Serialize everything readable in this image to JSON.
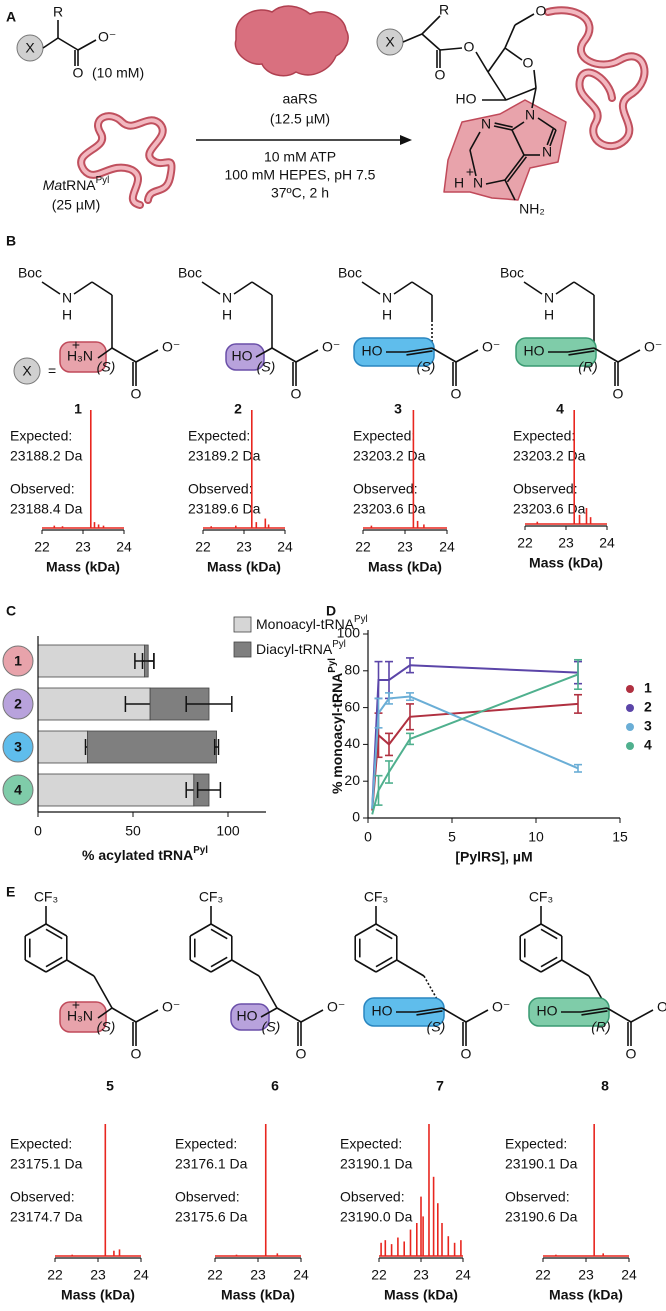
{
  "panel_labels": [
    "A",
    "B",
    "C",
    "D",
    "E"
  ],
  "panel_a": {
    "reactant": {
      "substituent": "R",
      "x": "X",
      "carbonyl_o": "O",
      "carboxylate": "O⁻",
      "concentration": "(10 mM)"
    },
    "enzyme": "aaRS",
    "enzyme_concentration": "(12.5 µM)",
    "conditions": [
      "10 mM ATP",
      "100 mM HEPES, pH 7.5",
      "37ºC, 2 h"
    ],
    "trna": {
      "prefix": "Ma",
      "name": "tRNA",
      "superscript": "Pyl",
      "concentration": "(25 µM)"
    },
    "product": {
      "substituent": "R",
      "x": "X",
      "carbonyl_o": "O",
      "ester_o": "O",
      "ring_o": "O",
      "linker_o": "O",
      "hydroxyl": "HO",
      "n9": "N",
      "n7": "N",
      "n3": "N",
      "n1": "N",
      "n1_h": "H",
      "charge": "+",
      "amine": "NH₂"
    }
  },
  "panel_b": {
    "x": "X",
    "equals": "=",
    "structures": [
      {
        "protecting_group": "Boc",
        "amide_n": "N",
        "amide_h": "H",
        "group": "H₃N",
        "charge": "+",
        "stereo": "(S)",
        "carbonyl_o": "O",
        "carboxylate": "O⁻",
        "number": "1"
      },
      {
        "protecting_group": "Boc",
        "amide_n": "N",
        "amide_h": "H",
        "group": "HO",
        "stereo": "(S)",
        "carbonyl_o": "O",
        "carboxylate": "O⁻",
        "number": "2"
      },
      {
        "protecting_group": "Boc",
        "amide_n": "N",
        "amide_h": "H",
        "group": "HO",
        "stereo": "(S)",
        "carbonyl_o": "O",
        "carboxylate": "O⁻",
        "number": "3"
      },
      {
        "protecting_group": "Boc",
        "amide_n": "N",
        "amide_h": "H",
        "group": "HO",
        "stereo": "(R)",
        "carbonyl_o": "O",
        "carboxylate": "O⁻",
        "number": "4"
      }
    ]
  },
  "panel_e": {
    "structures": [
      {
        "cf3": "CF₃",
        "group": "H₃N",
        "charge": "+",
        "stereo": "(S)",
        "carbonyl_o": "O",
        "carboxylate": "O⁻",
        "number": "5"
      },
      {
        "cf3": "CF₃",
        "group": "HO",
        "stereo": "(S)",
        "carbonyl_o": "O",
        "carboxylate": "O⁻",
        "number": "6"
      },
      {
        "cf3": "CF₃",
        "group": "HO",
        "stereo": "(S)",
        "carbonyl_o": "O",
        "carboxylate": "O⁻",
        "number": "7"
      },
      {
        "cf3": "CF₃",
        "group": "HO",
        "stereo": "(R)",
        "carbonyl_o": "O",
        "carboxylate": "O⁻",
        "number": "8"
      }
    ]
  },
  "chart_data": [
    {
      "type": "spectrum",
      "expected_label": "Expected:",
      "expected": "23188.2 Da",
      "observed_label": "Observed:",
      "observed": "23188.4 Da",
      "xlabel": "Mass (kDa)",
      "xlim": [
        22,
        24
      ],
      "xticks": [
        22,
        23,
        24
      ],
      "color": "#e8261f",
      "x": [
        22.3,
        22.5,
        23.19,
        23.28,
        23.38,
        23.5
      ],
      "values": [
        2,
        1.5,
        100,
        5,
        3,
        2
      ]
    },
    {
      "type": "spectrum",
      "expected_label": "Expected:",
      "expected": "23189.2 Da",
      "observed_label": "Observed:",
      "observed": "23189.6 Da",
      "xlabel": "Mass (kDa)",
      "xlim": [
        22,
        24
      ],
      "xticks": [
        22,
        23,
        24
      ],
      "color": "#e8261f",
      "x": [
        22.2,
        22.8,
        23.19,
        23.3,
        23.52,
        23.6
      ],
      "values": [
        1.5,
        2,
        100,
        5,
        8,
        3
      ]
    },
    {
      "type": "spectrum",
      "expected_label": "Expected:",
      "expected": "23203.2 Da",
      "observed_label": "Observed:",
      "observed": "23203.6 Da",
      "xlabel": "Mass (kDa)",
      "xlim": [
        22,
        24
      ],
      "xticks": [
        22,
        23,
        24
      ],
      "color": "#e8261f",
      "x": [
        22.2,
        23.2,
        23.3,
        23.45
      ],
      "values": [
        2,
        100,
        6,
        3
      ]
    },
    {
      "type": "spectrum",
      "expected_label": "Expected:",
      "expected": "23203.2 Da",
      "observed_label": "Observed:",
      "observed": "23203.6 Da",
      "xlabel": "Mass (kDa)",
      "xlim": [
        22,
        24
      ],
      "xticks": [
        22,
        23,
        24
      ],
      "color": "#e8261f",
      "x": [
        22.3,
        23.2,
        23.33,
        23.5,
        23.6
      ],
      "values": [
        2,
        100,
        8,
        14,
        6
      ]
    },
    {
      "type": "bar",
      "orientation": "horizontal",
      "stacked": true,
      "categories": [
        "1",
        "2",
        "3",
        "4"
      ],
      "category_colors": [
        "#e8a3ab",
        "#b8a2dc",
        "#5fbdec",
        "#7fcca9"
      ],
      "series": [
        {
          "name": "Monoacyl-tRNA",
          "name_superscript": "Pyl",
          "color": "#d6d6d6",
          "values": [
            56,
            59,
            26,
            82
          ],
          "errors": [
            5,
            13,
            1,
            4
          ]
        },
        {
          "name": "Diacyl-tRNA",
          "name_superscript": "Pyl",
          "color": "#7f7f7f",
          "values": [
            2,
            31,
            68,
            8
          ],
          "errors": [
            3,
            12,
            1,
            6
          ]
        }
      ],
      "xlabel": {
        "text": "% acylated tRNA",
        "superscript": "Pyl"
      },
      "xlim": [
        0,
        120
      ],
      "xticks": [
        0,
        50,
        100
      ],
      "legend": "top-right"
    },
    {
      "type": "line",
      "x": [
        0.25,
        0.625,
        1.25,
        2.5,
        12.5
      ],
      "series": [
        {
          "name": "1",
          "color": "#b03040",
          "values": [
            4,
            45,
            40,
            55,
            62
          ],
          "errors": [
            null,
            12,
            6,
            7,
            5
          ]
        },
        {
          "name": "2",
          "color": "#5b45a8",
          "values": [
            5,
            75,
            75,
            83,
            79
          ],
          "errors": [
            null,
            10,
            10,
            4,
            6
          ]
        },
        {
          "name": "3",
          "color": "#6aaed6",
          "values": [
            5,
            57,
            65,
            66,
            27
          ],
          "errors": [
            null,
            8,
            3,
            2,
            2
          ]
        },
        {
          "name": "4",
          "color": "#4fb08e",
          "values": [
            2,
            15,
            25,
            43,
            78
          ],
          "errors": [
            null,
            8,
            6,
            3,
            8
          ]
        }
      ],
      "xlabel": "[PylRS], µM",
      "ylabel": {
        "text": "% monoacyl-tRNA",
        "superscript": "Pyl"
      },
      "xlim": [
        0,
        15
      ],
      "xticks": [
        0,
        5,
        10,
        15
      ],
      "ylim": [
        0,
        100
      ],
      "yticks": [
        0,
        20,
        40,
        60,
        80,
        100
      ],
      "legend": "right"
    },
    {
      "type": "spectrum",
      "expected_label": "Expected:",
      "expected": "23175.1 Da",
      "observed_label": "Observed:",
      "observed": "23174.7 Da",
      "xlabel": "Mass (kDa)",
      "xlim": [
        22,
        24
      ],
      "xticks": [
        22,
        23,
        24
      ],
      "color": "#e8261f",
      "x": [
        22.4,
        23.17,
        23.37,
        23.5
      ],
      "values": [
        1,
        100,
        4,
        5
      ]
    },
    {
      "type": "spectrum",
      "expected_label": "Expected:",
      "expected": "23176.1 Da",
      "observed_label": "Observed:",
      "observed": "23175.6 Da",
      "xlabel": "Mass (kDa)",
      "xlim": [
        22,
        24
      ],
      "xticks": [
        22,
        23,
        24
      ],
      "color": "#e8261f",
      "x": [
        22.5,
        23.18,
        23.45
      ],
      "values": [
        1,
        100,
        2
      ]
    },
    {
      "type": "spectrum",
      "expected_label": "Expected:",
      "expected": "23190.1 Da",
      "observed_label": "Observed:",
      "observed": "23190.0 Da",
      "xlabel": "Mass (kDa)",
      "xlim": [
        22,
        24
      ],
      "xticks": [
        22,
        23,
        24
      ],
      "color": "#e8261f",
      "x": [
        22.05,
        22.15,
        22.3,
        22.45,
        22.6,
        22.75,
        22.9,
        23.0,
        23.05,
        23.19,
        23.3,
        23.4,
        23.5,
        23.65,
        23.8,
        23.95
      ],
      "values": [
        10,
        12,
        9,
        14,
        11,
        20,
        25,
        45,
        30,
        100,
        60,
        40,
        25,
        15,
        10,
        12
      ]
    },
    {
      "type": "spectrum",
      "expected_label": "Expected:",
      "expected": "23190.1 Da",
      "observed_label": "Observed:",
      "observed": "23190.6 Da",
      "xlabel": "Mass (kDa)",
      "xlim": [
        22,
        24
      ],
      "xticks": [
        22,
        23,
        24
      ],
      "color": "#e8261f",
      "x": [
        22.3,
        23.19,
        23.4
      ],
      "values": [
        1,
        100,
        2
      ]
    }
  ]
}
